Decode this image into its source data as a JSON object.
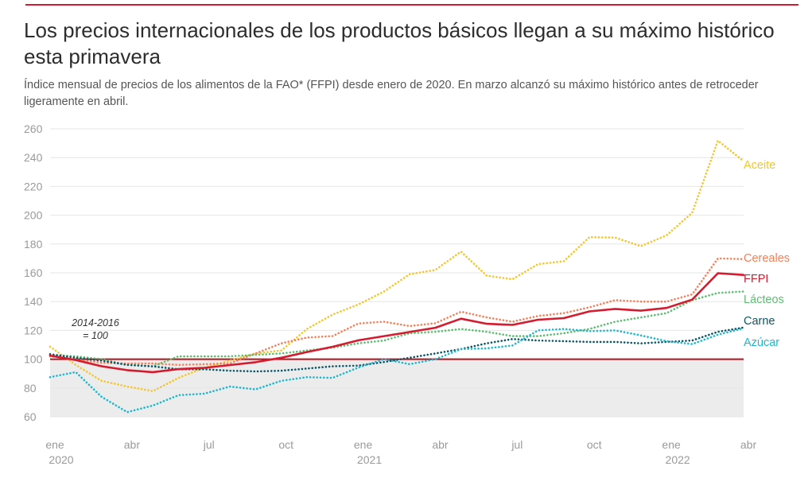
{
  "title": "Los precios internacionales de los productos básicos llegan a su máximo histórico esta primavera",
  "subtitle": "Índice mensual de precios de los alimentos de la FAO* (FFPI) desde enero de 2020. En marzo alcanzó su máximo histórico antes de retroceder ligeramente en abril.",
  "colors": {
    "accent": "#d51b2e",
    "text": "#2d2d2d",
    "axis_text": "#9a9a9a",
    "grid": "#e6e6e6",
    "shade": "#ececec"
  },
  "chart_data": {
    "type": "line",
    "title": "Los precios internacionales de los productos básicos llegan a su máximo histórico esta primavera",
    "subtitle": "Índice mensual de precios de los alimentos de la FAO* (FFPI) desde enero de 2020. En marzo alcanzó su máximo histórico antes de retroceder ligeramente en abril.",
    "xlabel": "",
    "ylabel": "",
    "ylim": [
      60,
      260
    ],
    "yticks": [
      60,
      80,
      100,
      120,
      140,
      160,
      180,
      200,
      220,
      240,
      260
    ],
    "grid": true,
    "legend": "series labels at right end of lines",
    "x": [
      "2020-01",
      "2020-02",
      "2020-03",
      "2020-04",
      "2020-05",
      "2020-06",
      "2020-07",
      "2020-08",
      "2020-09",
      "2020-10",
      "2020-11",
      "2020-12",
      "2021-01",
      "2021-02",
      "2021-03",
      "2021-04",
      "2021-05",
      "2021-06",
      "2021-07",
      "2021-08",
      "2021-09",
      "2021-10",
      "2021-11",
      "2021-12",
      "2022-01",
      "2022-02",
      "2022-03",
      "2022-04"
    ],
    "xticks": [
      {
        "x": "2020-01",
        "label": "ene",
        "year": "2020"
      },
      {
        "x": "2020-04",
        "label": "abr",
        "year": ""
      },
      {
        "x": "2020-07",
        "label": "jul",
        "year": ""
      },
      {
        "x": "2020-10",
        "label": "oct",
        "year": ""
      },
      {
        "x": "2021-01",
        "label": "ene",
        "year": "2021"
      },
      {
        "x": "2021-04",
        "label": "abr",
        "year": ""
      },
      {
        "x": "2021-07",
        "label": "jul",
        "year": ""
      },
      {
        "x": "2021-10",
        "label": "oct",
        "year": ""
      },
      {
        "x": "2022-01",
        "label": "ene",
        "year": "2022"
      },
      {
        "x": "2022-04",
        "label": "abr",
        "year": ""
      }
    ],
    "reference": {
      "value": 100,
      "label_line1": "2014-2016",
      "label_line2": "= 100",
      "color": "#b5121b"
    },
    "series": [
      {
        "name": "Aceite",
        "color": "#f5c52a",
        "dash": "dotted",
        "values": [
          108.7,
          96.0,
          85.0,
          81.0,
          77.8,
          87.0,
          94.0,
          99.0,
          104.0,
          106.0,
          121.0,
          131.0,
          138.0,
          147.0,
          159.0,
          162.0,
          174.7,
          158.0,
          155.5,
          166.0,
          168.0,
          184.8,
          184.5,
          178.5,
          186.0,
          201.7,
          251.8,
          237.5
        ]
      },
      {
        "name": "Cereales",
        "color": "#f47f58",
        "dash": "dotted",
        "values": [
          102.0,
          100.0,
          97.5,
          97.0,
          97.0,
          96.0,
          96.5,
          97.0,
          104.0,
          111.0,
          115.0,
          116.0,
          124.8,
          126.0,
          123.0,
          125.0,
          133.0,
          129.0,
          126.0,
          130.0,
          132.0,
          136.0,
          141.0,
          140.0,
          140.0,
          145.0,
          170.0,
          169.5
        ]
      },
      {
        "name": "FFPI",
        "color": "#d51b2e",
        "dash": "solid",
        "values": [
          102.5,
          99.4,
          95.1,
          92.4,
          91.0,
          93.1,
          94.0,
          95.9,
          97.9,
          101.0,
          105.0,
          108.6,
          113.1,
          116.0,
          118.9,
          121.8,
          128.1,
          124.6,
          123.8,
          127.4,
          128.5,
          133.2,
          134.9,
          133.7,
          135.6,
          141.4,
          159.7,
          158.5
        ]
      },
      {
        "name": "Lácteos",
        "color": "#5bbd6e",
        "dash": "dotted",
        "values": [
          103.0,
          102.0,
          100.0,
          96.0,
          95.0,
          102.0,
          102.0,
          102.0,
          103.0,
          104.0,
          106.0,
          108.0,
          111.0,
          113.0,
          118.0,
          119.0,
          121.0,
          119.0,
          116.0,
          116.0,
          118.0,
          121.0,
          126.0,
          129.0,
          132.0,
          141.0,
          146.0,
          147.0
        ]
      },
      {
        "name": "Carne",
        "color": "#0b5566",
        "dash": "dotted",
        "values": [
          103.5,
          101.0,
          99.0,
          96.0,
          95.0,
          93.0,
          93.0,
          92.0,
          91.5,
          92.0,
          93.5,
          95.0,
          95.5,
          98.0,
          101.0,
          104.0,
          107.0,
          111.0,
          114.0,
          113.0,
          112.5,
          112.0,
          112.0,
          111.0,
          112.0,
          113.0,
          119.0,
          122.0
        ]
      },
      {
        "name": "Azúcar",
        "color": "#1ab8cf",
        "dash": "dotted",
        "values": [
          87.5,
          91.0,
          73.9,
          63.2,
          67.8,
          75.0,
          76.0,
          81.0,
          79.0,
          85.0,
          87.5,
          87.0,
          94.2,
          100.0,
          96.5,
          100.0,
          107.0,
          107.5,
          109.5,
          120.0,
          121.0,
          119.5,
          120.0,
          116.5,
          112.5,
          110.5,
          117.0,
          121.5
        ]
      }
    ]
  }
}
